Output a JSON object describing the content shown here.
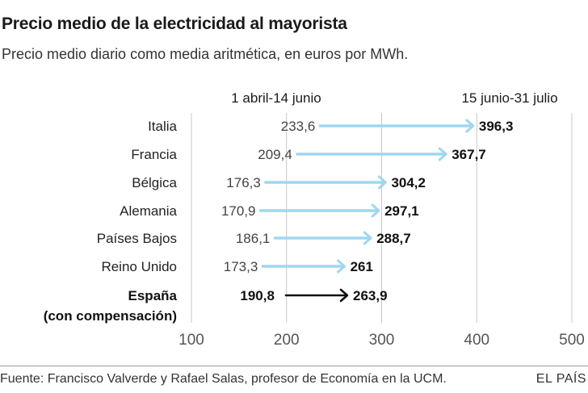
{
  "title": "Precio medio de la electricidad al mayorista",
  "subtitle": "Precio medio diario como media aritmética, en euros por MWh.",
  "source": "Fuente: Francisco Valverde y Rafael Salas, profesor de Economía en la UCM.",
  "brand": "EL PAÍS",
  "colors": {
    "arrow": "#9fd7ef",
    "highlight_arrow": "#111111",
    "grid": "#c8c8c8",
    "axis_label": "#555555"
  },
  "chart_data": {
    "type": "arrow",
    "period_labels": {
      "start": "1 abril-14 junio",
      "end": "15 junio-31 julio"
    },
    "xlim": [
      100,
      500
    ],
    "x_ticks": [
      "100",
      "200",
      "300",
      "400",
      "500"
    ],
    "grid": true,
    "categories": [
      {
        "country": "Italia",
        "start": 233.6,
        "end": 396.3,
        "start_label": "233,6",
        "end_label": "396,3",
        "highlight": false
      },
      {
        "country": "Francia",
        "start": 209.4,
        "end": 367.7,
        "start_label": "209,4",
        "end_label": "367,7",
        "highlight": false
      },
      {
        "country": "Bélgica",
        "start": 176.3,
        "end": 304.2,
        "start_label": "176,3",
        "end_label": "304,2",
        "highlight": false
      },
      {
        "country": "Alemania",
        "start": 170.9,
        "end": 297.1,
        "start_label": "170,9",
        "end_label": "297,1",
        "highlight": false
      },
      {
        "country": "Países Bajos",
        "start": 186.1,
        "end": 288.7,
        "start_label": "186,1",
        "end_label": "288,7",
        "highlight": false
      },
      {
        "country": "Reino Unido",
        "start": 173.3,
        "end": 261,
        "start_label": "173,3",
        "end_label": "261",
        "highlight": false
      },
      {
        "country": "España",
        "country_line2": "(con compensación)",
        "start": 190.8,
        "end": 263.9,
        "start_label": "190,8",
        "end_label": "263,9",
        "highlight": true
      }
    ]
  }
}
